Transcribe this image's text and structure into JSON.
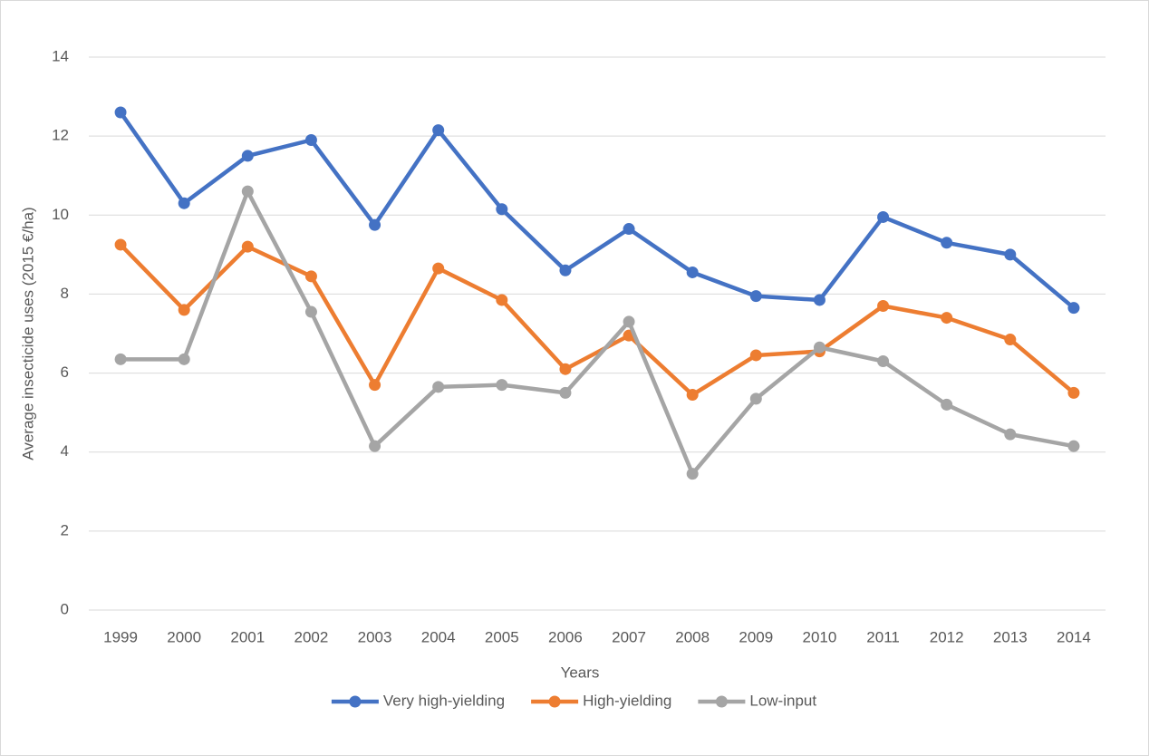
{
  "chart_data": {
    "type": "line",
    "x_label": "Years",
    "y_label": "Average insecticide uses (2015 €/ha)",
    "categories": [
      "1999",
      "2000",
      "2001",
      "2002",
      "2003",
      "2004",
      "2005",
      "2006",
      "2007",
      "2008",
      "2009",
      "2010",
      "2011",
      "2012",
      "2013",
      "2014"
    ],
    "series": [
      {
        "name": "Very high-yielding",
        "color": "#4472c4",
        "values": [
          12.6,
          10.3,
          11.5,
          11.9,
          9.75,
          12.15,
          10.15,
          8.6,
          9.65,
          8.55,
          7.95,
          7.85,
          9.95,
          9.3,
          9.0,
          7.65
        ]
      },
      {
        "name": "High-yielding",
        "color": "#ed7d31",
        "values": [
          9.25,
          7.6,
          9.2,
          8.45,
          5.7,
          8.65,
          7.85,
          6.1,
          6.95,
          5.45,
          6.45,
          6.55,
          7.7,
          7.4,
          6.85,
          5.5
        ]
      },
      {
        "name": "Low-input",
        "color": "#a5a5a5",
        "values": [
          6.35,
          6.35,
          10.6,
          7.55,
          4.15,
          5.65,
          5.7,
          5.5,
          7.3,
          3.45,
          5.35,
          6.65,
          6.3,
          5.2,
          4.45,
          4.15
        ]
      }
    ],
    "ylim": [
      0,
      14
    ],
    "yticks": [
      0,
      2,
      4,
      6,
      8,
      10,
      12,
      14
    ],
    "grid": true,
    "legend": "bottom"
  }
}
